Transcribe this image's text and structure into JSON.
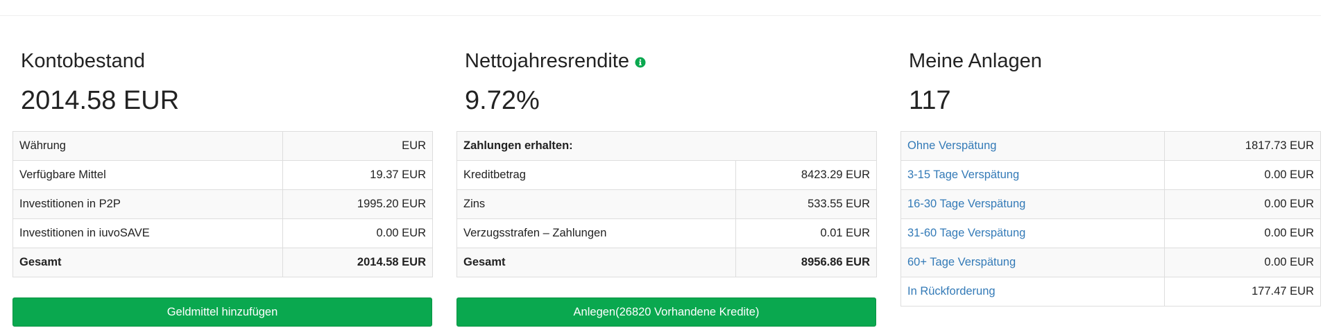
{
  "balance": {
    "title": "Kontobestand",
    "value": "2014.58 EUR",
    "rows": [
      {
        "label": "Währung",
        "value": "EUR"
      },
      {
        "label": "Verfügbare Mittel",
        "value": "19.37 EUR"
      },
      {
        "label": "Investitionen in P2P",
        "value": "1995.20 EUR"
      },
      {
        "label": "Investitionen in iuvoSAVE",
        "value": "0.00 EUR"
      },
      {
        "label": "Gesamt",
        "value": "2014.58 EUR"
      }
    ],
    "button_label": "Geldmittel hinzufügen"
  },
  "return": {
    "title": "Nettojahresrendite",
    "info_icon": "info-circle-icon",
    "info_color": "#0aa84f",
    "value": "9.72%",
    "header_row": "Zahlungen erhalten:",
    "rows": [
      {
        "label": "Kreditbetrag",
        "value": "8423.29 EUR"
      },
      {
        "label": "Zins",
        "value": "533.55 EUR"
      },
      {
        "label": "Verzugsstrafen – Zahlungen",
        "value": "0.01 EUR"
      },
      {
        "label": "Gesamt",
        "value": "8956.86 EUR"
      }
    ],
    "button_label": "Anlegen(26820 Vorhandene Kredite)"
  },
  "investments": {
    "title": "Meine Anlagen",
    "value": "117",
    "link_color": "#337ab7",
    "rows": [
      {
        "label": "Ohne Verspätung",
        "value": "1817.73 EUR"
      },
      {
        "label": "3-15 Tage Verspätung",
        "value": "0.00 EUR"
      },
      {
        "label": "16-30 Tage Verspätung",
        "value": "0.00 EUR"
      },
      {
        "label": "31-60 Tage Verspätung",
        "value": "0.00 EUR"
      },
      {
        "label": "60+ Tage Verspätung",
        "value": "0.00 EUR"
      },
      {
        "label": "In Rückforderung",
        "value": "177.47 EUR"
      }
    ]
  },
  "colors": {
    "button_bg": "#0aa84f",
    "border": "#dddddd",
    "stripe": "#f9f9f9"
  }
}
